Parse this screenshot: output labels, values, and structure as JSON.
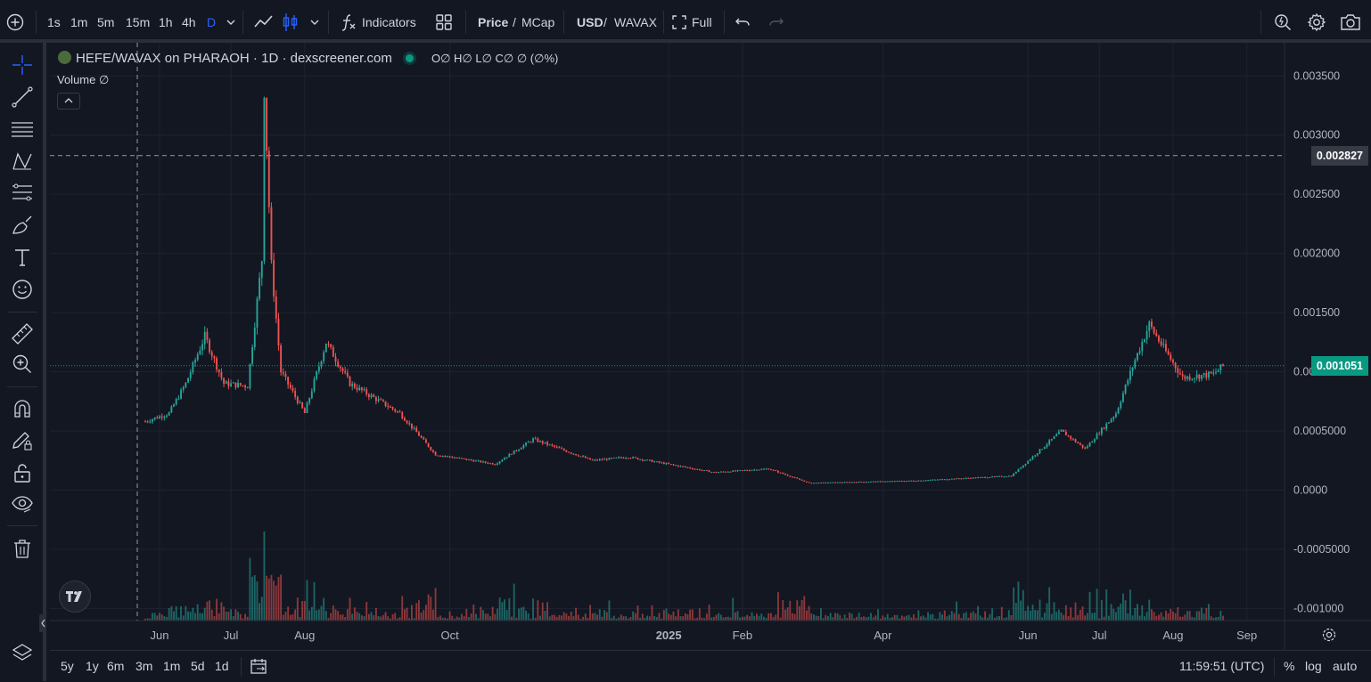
{
  "toolbar": {
    "intervals": [
      "1s",
      "1m",
      "5m",
      "15m",
      "1h",
      "4h",
      "D"
    ],
    "active_interval": "D",
    "indicators_label": "Indicators",
    "price_label": "Price",
    "mcap_label": "MCap",
    "usd_label": "USD",
    "wavax_label": "WAVAX",
    "slash": "/",
    "full_label": "Full"
  },
  "legend": {
    "symbol_line": "HEFE/WAVAX on PHARAOH · 1D · dexscreener.com",
    "ohlc": "O∅ H∅ L∅ C∅ ∅ (∅%)",
    "volume": "Volume  ∅"
  },
  "chart_data": {
    "type": "candlestick",
    "title": "HEFE/WAVAX on PHARAOH · 1D · dexscreener.com",
    "y_ticks": [
      "0.003500",
      "0.003000",
      "0.002500",
      "0.002000",
      "0.001500",
      "0.001000",
      "0.0005000",
      "0.0000",
      "-0.0005000",
      "-0.001000"
    ],
    "ylim": [
      -0.00105,
      0.00363
    ],
    "x_ticks": [
      {
        "label": "Jun",
        "bold": false
      },
      {
        "label": "Jul",
        "bold": false
      },
      {
        "label": "Aug",
        "bold": false
      },
      {
        "label": "Oct",
        "bold": false
      },
      {
        "label": "2025",
        "bold": true
      },
      {
        "label": "Feb",
        "bold": false
      },
      {
        "label": "Apr",
        "bold": false
      },
      {
        "label": "Jun",
        "bold": false
      },
      {
        "label": "Jul",
        "bold": false
      },
      {
        "label": "Aug",
        "bold": false
      },
      {
        "label": "Sep",
        "bold": false
      }
    ],
    "crosshair_price": "0.002827",
    "last_price": "0.001051",
    "up_color": "#26a69a",
    "down_color": "#ef5350",
    "approx_close_path": [
      {
        "t": "2024-05-26",
        "p": 0.00058
      },
      {
        "t": "2024-06-05",
        "p": 0.00065
      },
      {
        "t": "2024-06-12",
        "p": 0.0009
      },
      {
        "t": "2024-06-20",
        "p": 0.0013
      },
      {
        "t": "2024-06-28",
        "p": 0.0009
      },
      {
        "t": "2024-07-08",
        "p": 0.00088
      },
      {
        "t": "2024-07-14",
        "p": 0.00195
      },
      {
        "t": "2024-07-15",
        "p": 0.0034
      },
      {
        "t": "2024-07-18",
        "p": 0.0019
      },
      {
        "t": "2024-07-22",
        "p": 0.001
      },
      {
        "t": "2024-08-01",
        "p": 0.00065
      },
      {
        "t": "2024-08-10",
        "p": 0.00125
      },
      {
        "t": "2024-08-20",
        "p": 0.0009
      },
      {
        "t": "2024-09-10",
        "p": 0.00065
      },
      {
        "t": "2024-09-25",
        "p": 0.0003
      },
      {
        "t": "2024-10-20",
        "p": 0.00022
      },
      {
        "t": "2024-11-05",
        "p": 0.00043
      },
      {
        "t": "2024-11-30",
        "p": 0.00025
      },
      {
        "t": "2024-12-15",
        "p": 0.00028
      },
      {
        "t": "2025-01-20",
        "p": 0.00015
      },
      {
        "t": "2025-02-12",
        "p": 0.00018
      },
      {
        "t": "2025-03-01",
        "p": 6e-05
      },
      {
        "t": "2025-04-15",
        "p": 8e-05
      },
      {
        "t": "2025-05-25",
        "p": 0.00012
      },
      {
        "t": "2025-06-15",
        "p": 0.0005
      },
      {
        "t": "2025-06-25",
        "p": 0.00035
      },
      {
        "t": "2025-07-08",
        "p": 0.00065
      },
      {
        "t": "2025-07-16",
        "p": 0.0011
      },
      {
        "t": "2025-07-22",
        "p": 0.0014
      },
      {
        "t": "2025-07-28",
        "p": 0.0012
      },
      {
        "t": "2025-08-05",
        "p": 0.00095
      },
      {
        "t": "2025-08-18",
        "p": 0.00098
      },
      {
        "t": "2025-08-22",
        "p": 0.00105
      }
    ]
  },
  "bottombar": {
    "ranges": [
      "5y",
      "1y",
      "6m",
      "3m",
      "1m",
      "5d",
      "1d"
    ],
    "time": "11:59:51 (UTC)",
    "percent": "%",
    "log": "log",
    "auto": "auto"
  }
}
